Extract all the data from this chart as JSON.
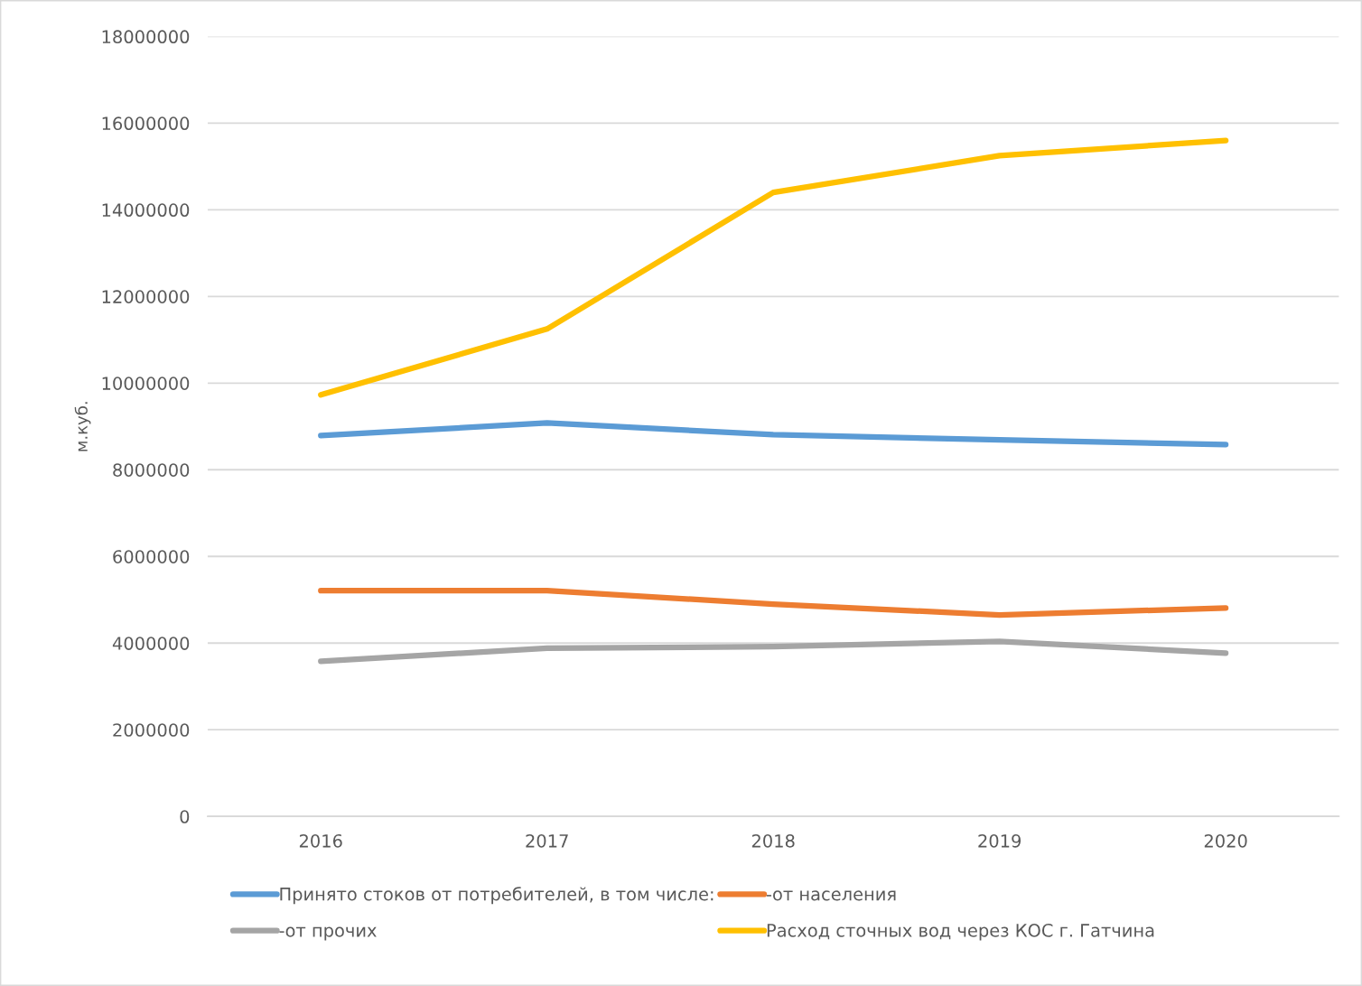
{
  "chart_data": {
    "type": "line",
    "ylabel": "м.куб.",
    "categories": [
      "2016",
      "2017",
      "2018",
      "2019",
      "2020"
    ],
    "series": [
      {
        "name": "Принято стоков от потребителей, в том числе:",
        "color": "#5b9bd5",
        "values": [
          8790000,
          9080000,
          8810000,
          8690000,
          8580000
        ]
      },
      {
        "name": "-от населения",
        "color": "#ed7d31",
        "values": [
          5210000,
          5210000,
          4900000,
          4650000,
          4810000
        ]
      },
      {
        "name": "-от прочих",
        "color": "#a5a5a5",
        "values": [
          3580000,
          3880000,
          3920000,
          4040000,
          3770000
        ]
      },
      {
        "name": "Расход сточных вод через КОС г. Гатчина",
        "color": "#ffc000",
        "values": [
          9730000,
          11250000,
          14400000,
          15250000,
          15600000
        ]
      }
    ],
    "ylim": [
      0,
      18000000
    ],
    "yticks": [
      0,
      2000000,
      4000000,
      6000000,
      8000000,
      10000000,
      12000000,
      14000000,
      16000000,
      18000000
    ],
    "grid": "y",
    "legend": "bottom",
    "marker": "none",
    "line_style": "solid"
  }
}
